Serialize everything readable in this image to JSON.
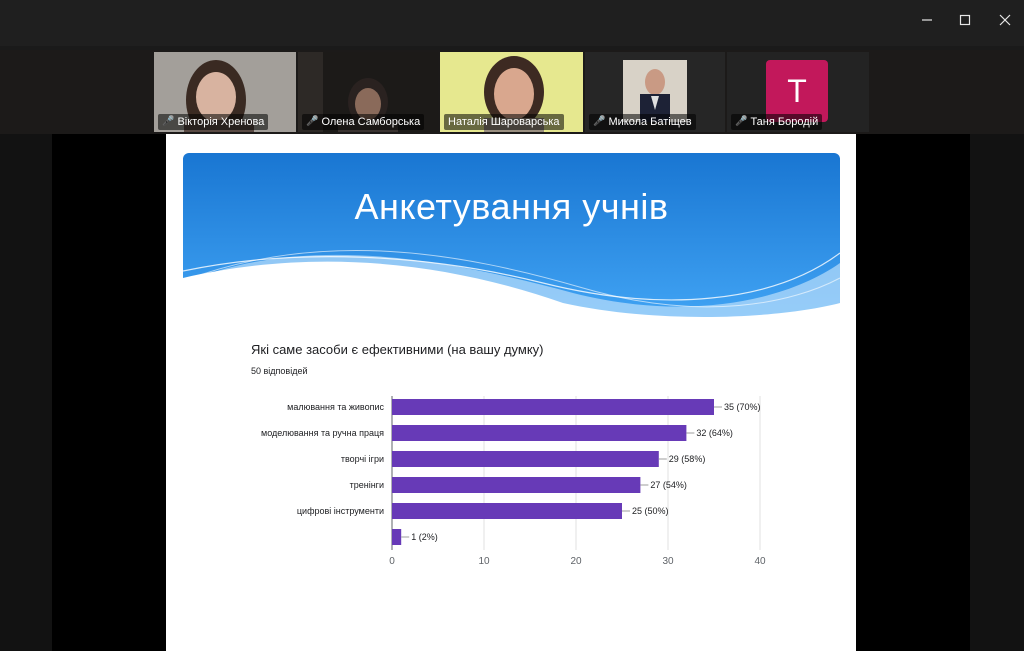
{
  "window": {
    "minimize_icon": "minimize-icon",
    "maximize_icon": "maximize-icon",
    "close_icon": "close-icon"
  },
  "participants": [
    {
      "name": "Вікторія Хренова",
      "muted": true
    },
    {
      "name": "Олена Самборська",
      "muted": true
    },
    {
      "name": "Наталія Шароварська",
      "muted": false,
      "active_speaker": true
    },
    {
      "name": "Микола Батіщев",
      "muted": true
    },
    {
      "name": "Таня Бородій",
      "muted": true,
      "avatar_letter": "T",
      "avatar_color": "#c2185b"
    }
  ],
  "slide": {
    "title": "Анкетування учнів",
    "question": "Які саме засоби є ефективними (на вашу думку)",
    "responses": "50 відповідей"
  },
  "chart_data": {
    "type": "bar",
    "orientation": "horizontal",
    "title": "",
    "categories": [
      "малювання та живопис",
      "моделювання та ручна праця",
      "творчі ігри",
      "тренінги",
      "цифрові інструменти",
      ""
    ],
    "values": [
      35,
      32,
      29,
      27,
      25,
      1
    ],
    "data_labels": [
      "35 (70%)",
      "32 (64%)",
      "29 (58%)",
      "27 (54%)",
      "25 (50%)",
      "1 (2%)"
    ],
    "xlim": [
      0,
      40
    ],
    "xticks": [
      "0",
      "10",
      "20",
      "30",
      "40"
    ],
    "bar_color": "#673ab7",
    "grid": true
  },
  "colors": {
    "accent_speaker": "#2fd05a",
    "banner_top": "#1e88e5",
    "banner_bottom": "#64b5f6"
  }
}
